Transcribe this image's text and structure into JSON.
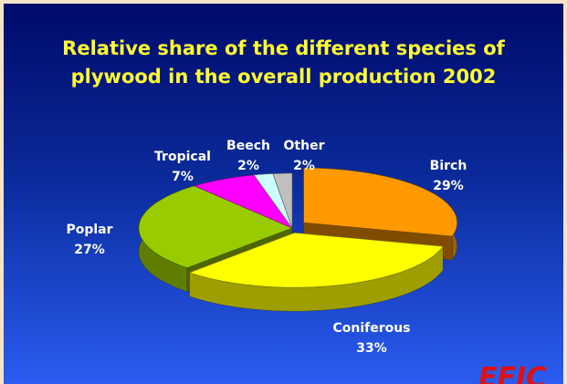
{
  "chart_data": {
    "type": "pie",
    "title": "Relative share of the different species of plywood in the overall production 2002",
    "categories": [
      "Birch",
      "Coniferous",
      "Poplar",
      "Tropical",
      "Beech",
      "Other"
    ],
    "values": [
      29,
      33,
      27,
      7,
      2,
      2
    ],
    "value_labels": [
      "29%",
      "33%",
      "27%",
      "7%",
      "2%",
      "2%"
    ],
    "colors": [
      "#ff9900",
      "#ffff00",
      "#99cc00",
      "#ff00ff",
      "#ccffff",
      "#c0c0c0"
    ],
    "logo": "EFIC"
  }
}
